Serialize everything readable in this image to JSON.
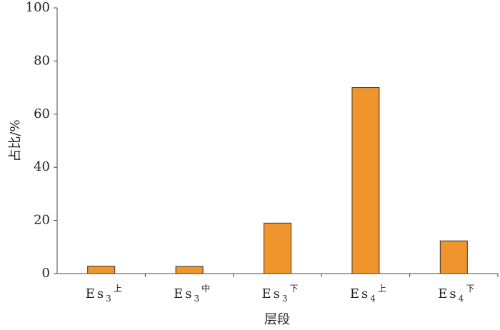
{
  "chart_data": {
    "type": "bar",
    "x_label": "层段",
    "y_label": "占比/%",
    "categories": [
      {
        "base": "Es",
        "sub": "3",
        "sup": "上"
      },
      {
        "base": "Es",
        "sub": "3",
        "sup": "中"
      },
      {
        "base": "Es",
        "sub": "3",
        "sup": "下"
      },
      {
        "base": "Es",
        "sub": "4",
        "sup": "上"
      },
      {
        "base": "Es",
        "sub": "4",
        "sup": "下"
      }
    ],
    "values": [
      2.8,
      2.7,
      19,
      70,
      12.3
    ],
    "color": "#f0952d",
    "ylim": [
      0,
      100
    ],
    "yticks": [
      0,
      20,
      40,
      60,
      80,
      100
    ]
  }
}
